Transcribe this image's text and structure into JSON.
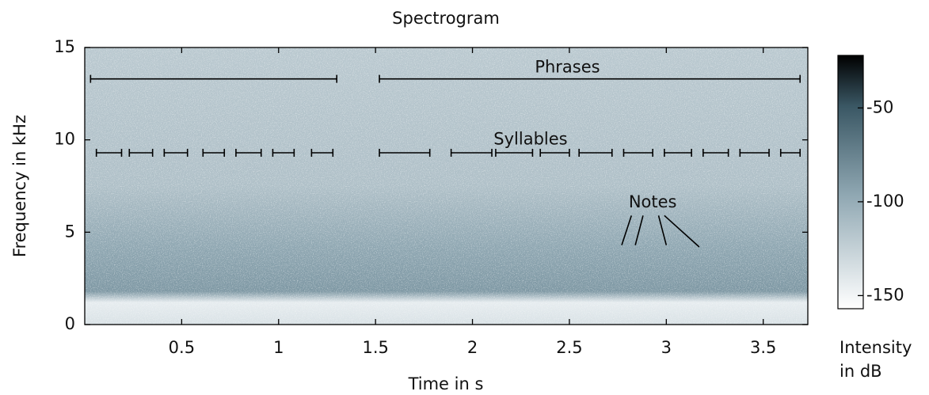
{
  "chart_data": {
    "type": "spectrogram",
    "title": "Spectrogram",
    "x_label": "Time in s",
    "y_label": "Frequency in kHz",
    "xlim": [
      0,
      3.73
    ],
    "ylim": [
      0,
      15
    ],
    "xticks": [
      0.5,
      1,
      1.5,
      2,
      2.5,
      3,
      3.5
    ],
    "yticks": [
      0,
      5,
      10,
      15
    ],
    "colorbar": {
      "label": "Intensity in dB",
      "clim": [
        -157,
        -22
      ],
      "ticks": [
        -50,
        -100,
        -150
      ]
    },
    "annotations": [
      {
        "text": "Phrases",
        "x": 2.49,
        "y": 13.9,
        "span_y": 13.3,
        "spans": [
          [
            0.03,
            1.3
          ],
          [
            1.52,
            3.69
          ]
        ]
      },
      {
        "text": "Syllables",
        "x": 2.3,
        "y": 10,
        "span_y": 9.3,
        "spans": [
          [
            0.06,
            0.19
          ],
          [
            0.23,
            0.35
          ],
          [
            0.41,
            0.53
          ],
          [
            0.61,
            0.72
          ],
          [
            0.78,
            0.91
          ],
          [
            0.97,
            1.08
          ],
          [
            1.17,
            1.28
          ],
          [
            1.52,
            1.78
          ],
          [
            1.89,
            2.1
          ],
          [
            2.12,
            2.31
          ],
          [
            2.35,
            2.5
          ],
          [
            2.55,
            2.72
          ],
          [
            2.78,
            2.93
          ],
          [
            2.99,
            3.13
          ],
          [
            3.19,
            3.32
          ],
          [
            3.38,
            3.53
          ],
          [
            3.59,
            3.69
          ]
        ]
      },
      {
        "text": "Notes",
        "x": 2.93,
        "y": 6.6,
        "pointers": [
          [
            2.82,
            5.9,
            2.77,
            4.3
          ],
          [
            2.88,
            5.9,
            2.84,
            4.3
          ],
          [
            2.96,
            5.9,
            3.0,
            4.3
          ],
          [
            2.99,
            5.9,
            3.17,
            4.2
          ]
        ]
      }
    ]
  }
}
